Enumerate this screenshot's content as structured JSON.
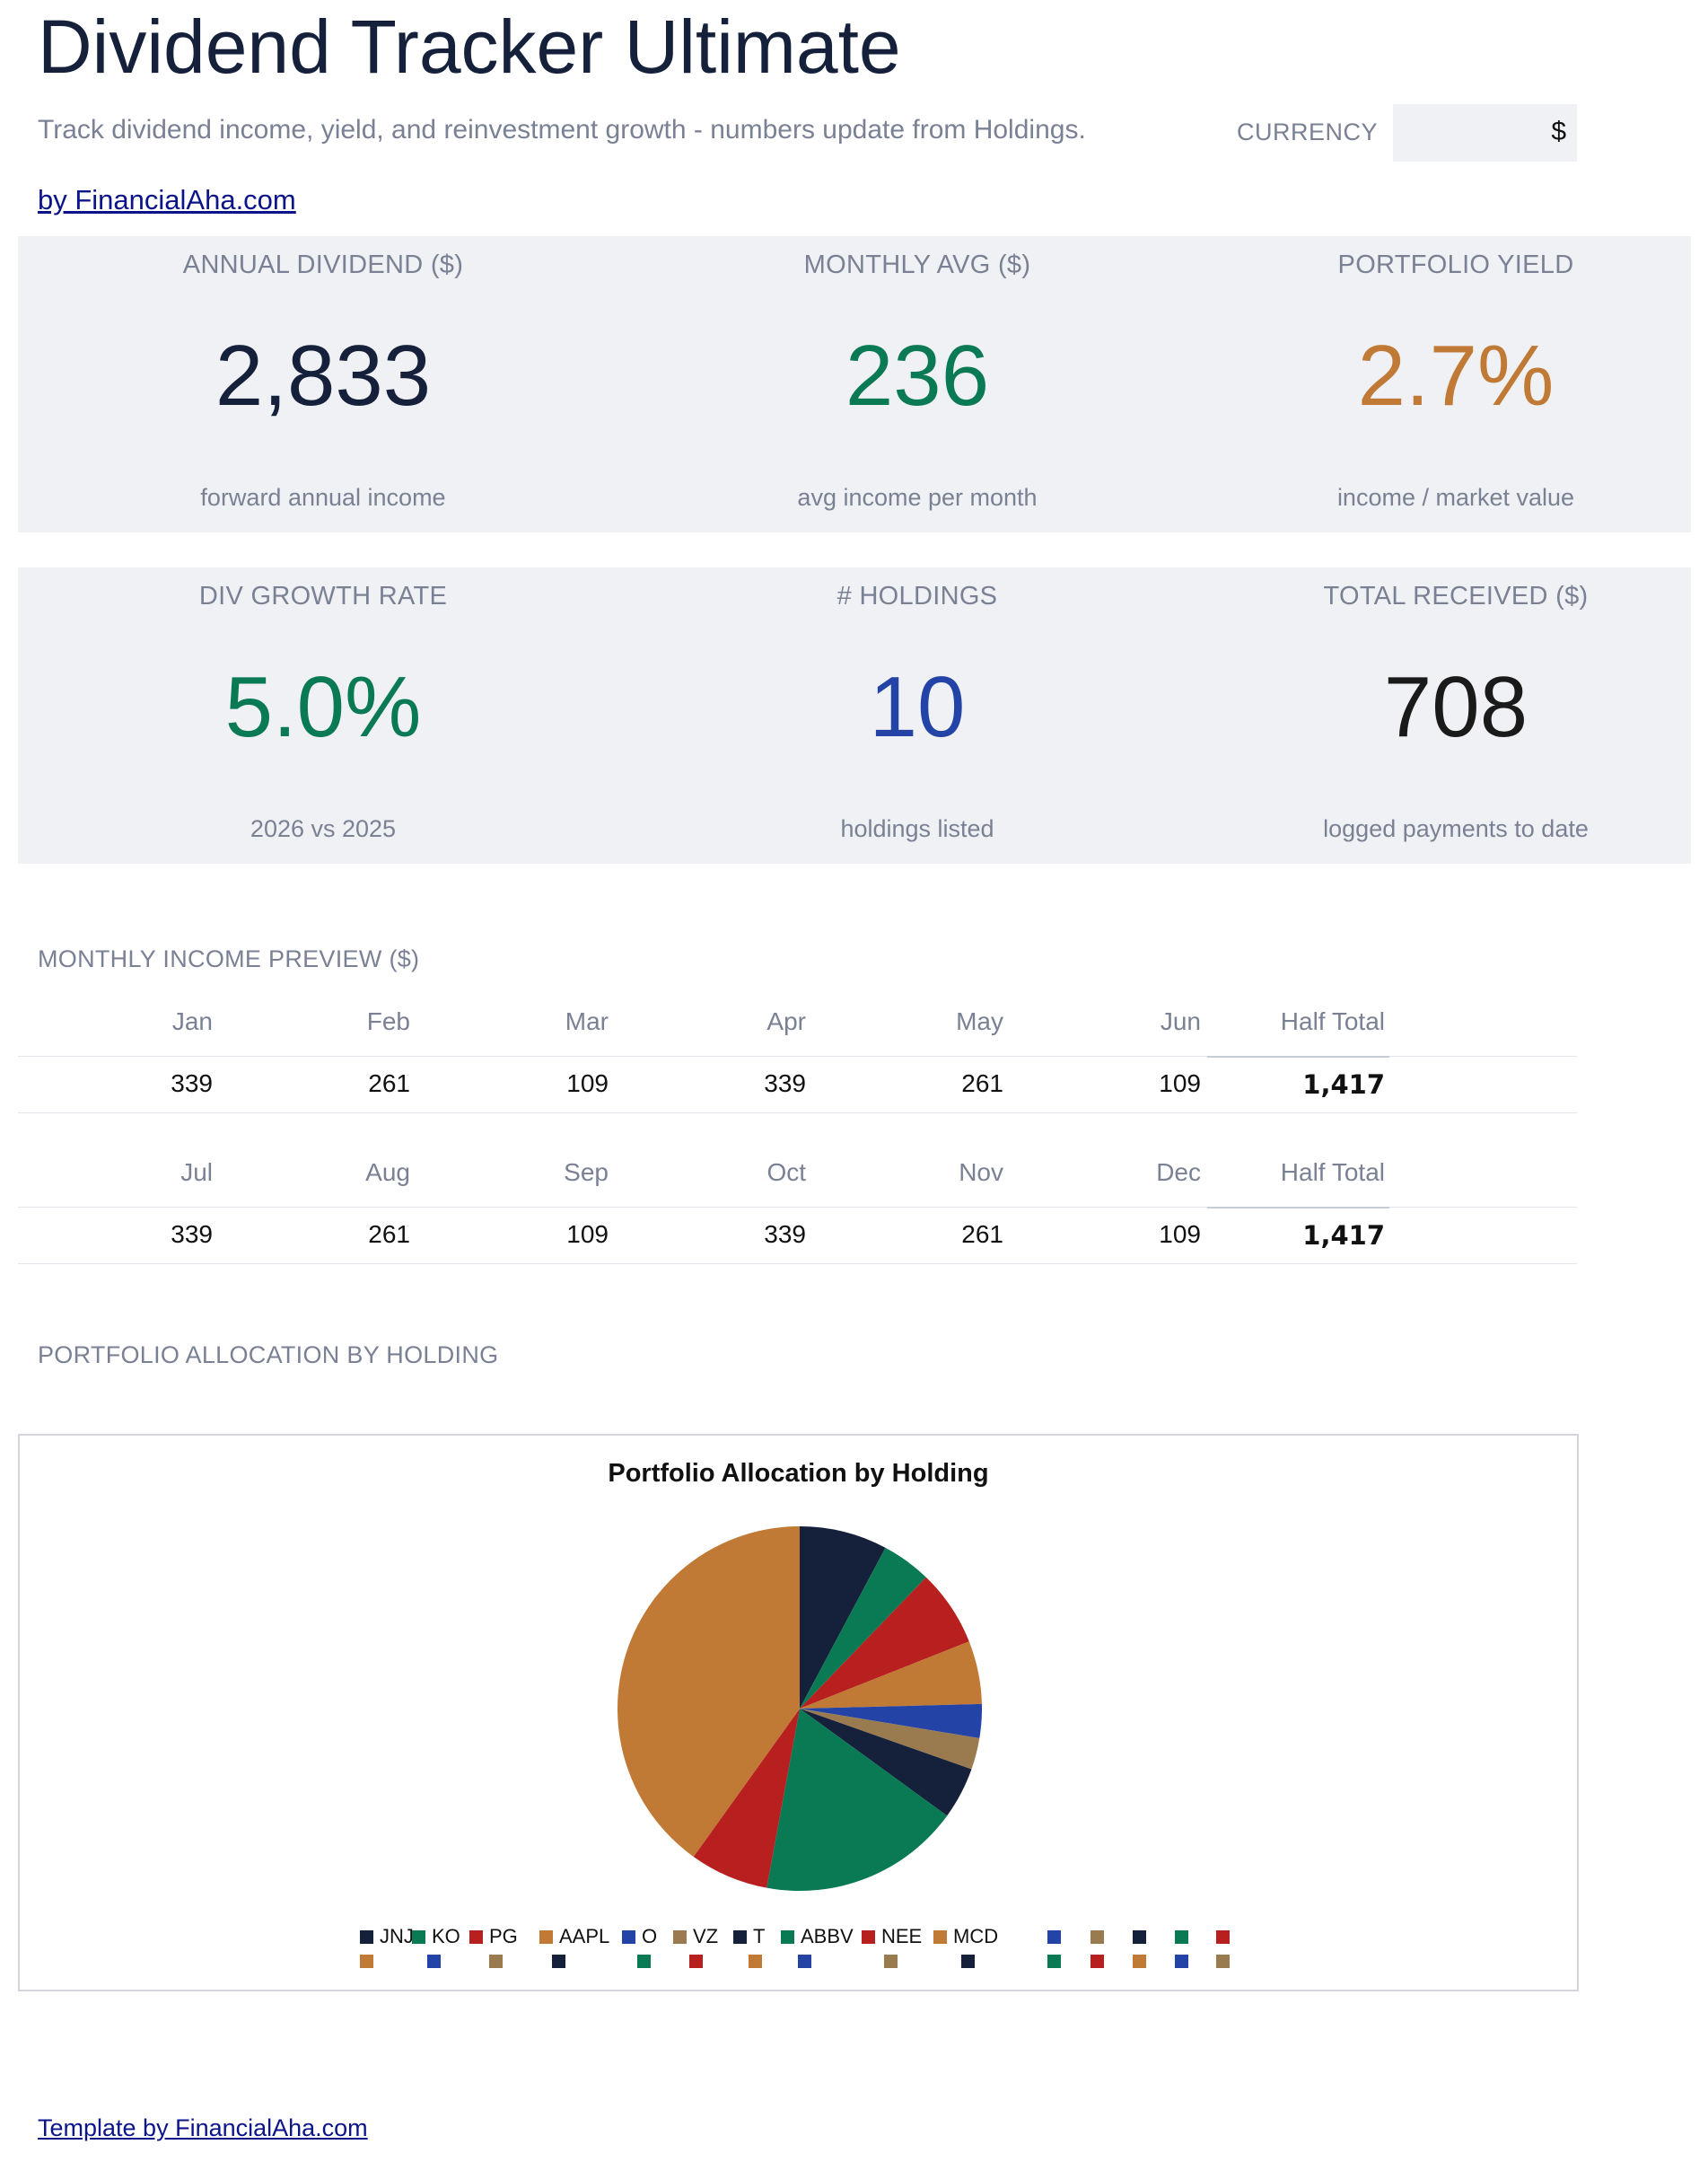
{
  "header": {
    "title": "Dividend Tracker Ultimate",
    "subtitle": "Track dividend income, yield, and reinvestment growth - numbers update from Holdings.",
    "currency_label": "CURRENCY",
    "currency_value": "$",
    "author_link": "by FinancialAha.com"
  },
  "kpis_row1": [
    {
      "label": "ANNUAL DIVIDEND ($)",
      "value": "2,833",
      "sub": "forward annual income",
      "color": "#15203b"
    },
    {
      "label": "MONTHLY AVG ($)",
      "value": "236",
      "sub": "avg income per month",
      "color": "#0a7a55"
    },
    {
      "label": "PORTFOLIO YIELD",
      "value": "2.7%",
      "sub": "income / market value",
      "color": "#c07a35"
    }
  ],
  "kpis_row2": [
    {
      "label": "DIV GROWTH RATE",
      "value": "5.0%",
      "sub": "2026 vs 2025",
      "color": "#0a7a55"
    },
    {
      "label": "# HOLDINGS",
      "value": "10",
      "sub": "holdings listed",
      "color": "#2443a6"
    },
    {
      "label": "TOTAL RECEIVED ($)",
      "value": "708",
      "sub": "logged payments to date",
      "color": "#1a1a1a"
    }
  ],
  "monthly": {
    "section_title": "MONTHLY INCOME PREVIEW ($)",
    "h1_headers": [
      "Jan",
      "Feb",
      "Mar",
      "Apr",
      "May",
      "Jun",
      "Half Total"
    ],
    "h1_values": [
      "339",
      "261",
      "109",
      "339",
      "261",
      "109",
      "1,417"
    ],
    "h2_headers": [
      "Jul",
      "Aug",
      "Sep",
      "Oct",
      "Nov",
      "Dec",
      "Half Total"
    ],
    "h2_values": [
      "339",
      "261",
      "109",
      "339",
      "261",
      "109",
      "1,417"
    ]
  },
  "allocation": {
    "section_title": "PORTFOLIO ALLOCATION BY HOLDING"
  },
  "chart_data": {
    "type": "pie",
    "title": "Portfolio Allocation by Holding",
    "categories": [
      "JNJ",
      "KO",
      "PG",
      "AAPL",
      "O",
      "VZ",
      "T",
      "ABBV",
      "NEE",
      "MCD"
    ],
    "values": [
      7.8,
      4.4,
      6.8,
      5.6,
      3.0,
      2.8,
      4.6,
      17.9,
      7.0,
      40.1
    ],
    "colors": [
      "#15203b",
      "#0a7a55",
      "#b81f1f",
      "#c07a35",
      "#2443a6",
      "#9a7b4f",
      "#15203b",
      "#0a7a55",
      "#b81f1f",
      "#c07a35"
    ],
    "legend_position": "bottom",
    "extra_legend_colors_row1": [
      "#2443a6",
      "#9a7b4f",
      "#15203b",
      "#0a7a55",
      "#b81f1f"
    ],
    "extra_legend_colors_row2": [
      "#c07a35",
      "#2443a6",
      "#9a7b4f",
      "#15203b",
      "#0a7a55",
      "#b81f1f",
      "#c07a35",
      "#2443a6",
      "#9a7b4f",
      "#15203b",
      "#0a7a55",
      "#b81f1f",
      "#c07a35",
      "#2443a6",
      "#9a7b4f"
    ]
  },
  "footer": {
    "link": "Template by FinancialAha.com"
  }
}
